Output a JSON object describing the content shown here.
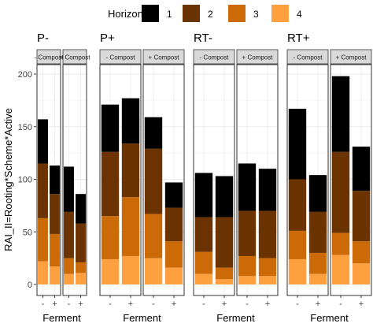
{
  "chart_data": {
    "type": "bar",
    "stacked": true,
    "ylabel": "RAI_II=Rooting*Scheme*Active",
    "xlabel": "Ferment",
    "ylim": [
      0,
      200
    ],
    "y_ticks": [
      0,
      50,
      100,
      150,
      200
    ],
    "legend": {
      "title": "Horizon",
      "placement": "top",
      "entries": [
        {
          "label": "1",
          "color": "#000000"
        },
        {
          "label": "2",
          "color": "#6b3300"
        },
        {
          "label": "3",
          "color": "#cc6a08"
        },
        {
          "label": "4",
          "color": "#ffa040"
        }
      ]
    },
    "ferment_levels": [
      "-",
      "+"
    ],
    "groups": [
      {
        "title": "P-",
        "panels": [
          {
            "strip": "- Compost",
            "bars": [
              {
                "ferment": "-",
                "segments": [
                  {
                    "horizon": "1",
                    "value": 42
                  },
                  {
                    "horizon": "2",
                    "value": 52
                  },
                  {
                    "horizon": "3",
                    "value": 41
                  },
                  {
                    "horizon": "4",
                    "value": 22
                  }
                ]
              },
              {
                "ferment": "+",
                "segments": [
                  {
                    "horizon": "1",
                    "value": 27
                  },
                  {
                    "horizon": "2",
                    "value": 38
                  },
                  {
                    "horizon": "3",
                    "value": 31
                  },
                  {
                    "horizon": "4",
                    "value": 17
                  }
                ]
              }
            ]
          },
          {
            "strip": "+ Compost",
            "bars": [
              {
                "ferment": "-",
                "segments": [
                  {
                    "horizon": "1",
                    "value": 43
                  },
                  {
                    "horizon": "2",
                    "value": 44
                  },
                  {
                    "horizon": "3",
                    "value": 15
                  },
                  {
                    "horizon": "4",
                    "value": 10
                  }
                ]
              },
              {
                "ferment": "+",
                "segments": [
                  {
                    "horizon": "1",
                    "value": 28
                  },
                  {
                    "horizon": "2",
                    "value": 37
                  },
                  {
                    "horizon": "3",
                    "value": 10
                  },
                  {
                    "horizon": "4",
                    "value": 11
                  }
                ]
              }
            ]
          }
        ]
      },
      {
        "title": "P+",
        "panels": [
          {
            "strip": "- Compost",
            "bars": [
              {
                "ferment": "-",
                "segments": [
                  {
                    "horizon": "1",
                    "value": 45
                  },
                  {
                    "horizon": "2",
                    "value": 61
                  },
                  {
                    "horizon": "3",
                    "value": 41
                  },
                  {
                    "horizon": "4",
                    "value": 24
                  }
                ]
              },
              {
                "ferment": "+",
                "segments": [
                  {
                    "horizon": "1",
                    "value": 43
                  },
                  {
                    "horizon": "2",
                    "value": 51
                  },
                  {
                    "horizon": "3",
                    "value": 56
                  },
                  {
                    "horizon": "4",
                    "value": 27
                  }
                ]
              }
            ]
          },
          {
            "strip": "+ Compost",
            "bars": [
              {
                "ferment": "-",
                "segments": [
                  {
                    "horizon": "1",
                    "value": 30
                  },
                  {
                    "horizon": "2",
                    "value": 62
                  },
                  {
                    "horizon": "3",
                    "value": 42
                  },
                  {
                    "horizon": "4",
                    "value": 25
                  }
                ]
              },
              {
                "ferment": "+",
                "segments": [
                  {
                    "horizon": "1",
                    "value": 24
                  },
                  {
                    "horizon": "2",
                    "value": 32
                  },
                  {
                    "horizon": "3",
                    "value": 25
                  },
                  {
                    "horizon": "4",
                    "value": 16
                  }
                ]
              }
            ]
          }
        ]
      },
      {
        "title": "RT-",
        "panels": [
          {
            "strip": "- Compost",
            "bars": [
              {
                "ferment": "-",
                "segments": [
                  {
                    "horizon": "1",
                    "value": 42
                  },
                  {
                    "horizon": "2",
                    "value": 33
                  },
                  {
                    "horizon": "3",
                    "value": 21
                  },
                  {
                    "horizon": "4",
                    "value": 10
                  }
                ]
              },
              {
                "ferment": "+",
                "segments": [
                  {
                    "horizon": "1",
                    "value": 39
                  },
                  {
                    "horizon": "2",
                    "value": 48
                  },
                  {
                    "horizon": "3",
                    "value": 11
                  },
                  {
                    "horizon": "4",
                    "value": 5
                  }
                ]
              }
            ]
          },
          {
            "strip": "+ Compost",
            "bars": [
              {
                "ferment": "-",
                "segments": [
                  {
                    "horizon": "1",
                    "value": 45
                  },
                  {
                    "horizon": "2",
                    "value": 43
                  },
                  {
                    "horizon": "3",
                    "value": 19
                  },
                  {
                    "horizon": "4",
                    "value": 8
                  }
                ]
              },
              {
                "ferment": "+",
                "segments": [
                  {
                    "horizon": "1",
                    "value": 40
                  },
                  {
                    "horizon": "2",
                    "value": 45
                  },
                  {
                    "horizon": "3",
                    "value": 17
                  },
                  {
                    "horizon": "4",
                    "value": 8
                  }
                ]
              }
            ]
          }
        ]
      },
      {
        "title": "RT+",
        "panels": [
          {
            "strip": "- Compost",
            "bars": [
              {
                "ferment": "-",
                "segments": [
                  {
                    "horizon": "1",
                    "value": 67
                  },
                  {
                    "horizon": "2",
                    "value": 49
                  },
                  {
                    "horizon": "3",
                    "value": 27
                  },
                  {
                    "horizon": "4",
                    "value": 24
                  }
                ]
              },
              {
                "ferment": "+",
                "segments": [
                  {
                    "horizon": "1",
                    "value": 35
                  },
                  {
                    "horizon": "2",
                    "value": 39
                  },
                  {
                    "horizon": "3",
                    "value": 20
                  },
                  {
                    "horizon": "4",
                    "value": 10
                  }
                ]
              }
            ]
          },
          {
            "strip": "+ Compost",
            "bars": [
              {
                "ferment": "-",
                "segments": [
                  {
                    "horizon": "1",
                    "value": 72
                  },
                  {
                    "horizon": "2",
                    "value": 77
                  },
                  {
                    "horizon": "3",
                    "value": 21
                  },
                  {
                    "horizon": "4",
                    "value": 28
                  }
                ]
              },
              {
                "ferment": "+",
                "segments": [
                  {
                    "horizon": "1",
                    "value": 42
                  },
                  {
                    "horizon": "2",
                    "value": 48
                  },
                  {
                    "horizon": "3",
                    "value": 21
                  },
                  {
                    "horizon": "4",
                    "value": 20
                  }
                ]
              }
            ]
          }
        ]
      }
    ]
  }
}
